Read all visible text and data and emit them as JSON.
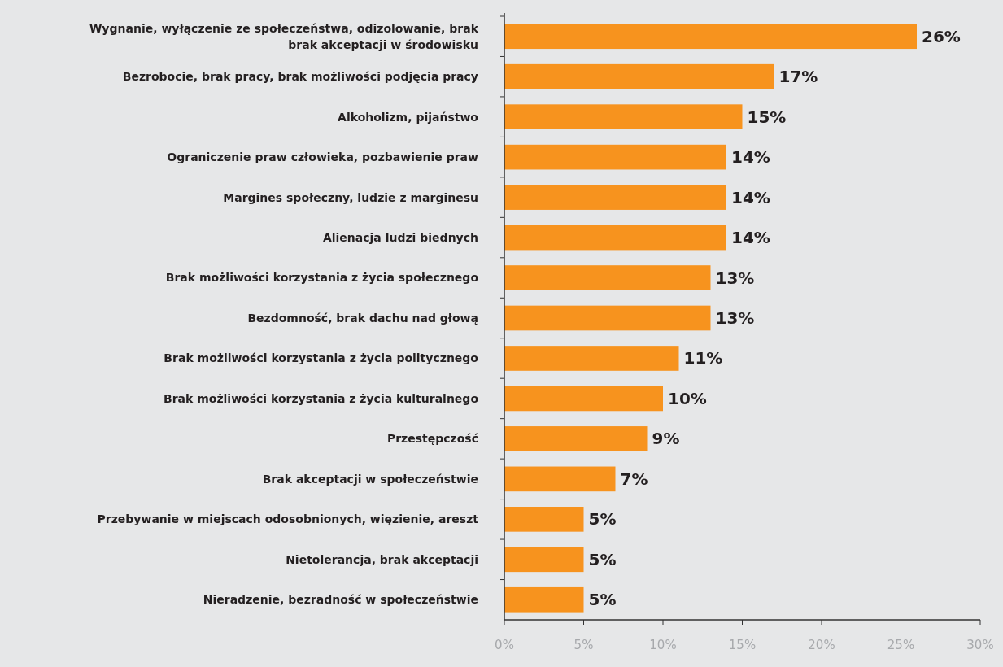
{
  "chart_data": {
    "type": "bar",
    "orientation": "horizontal",
    "categories": [
      "Wygnanie, wyłączenie ze społeczeństwa, odizolowanie, brak\nbrak akceptacji w środowisku",
      "Bezrobocie, brak pracy,  brak możliwości podjęcia pracy",
      "Alkoholizm, pijaństwo",
      "Ograniczenie praw człowieka, pozbawienie praw",
      "Margines społeczny, ludzie z marginesu",
      "Alienacja ludzi biednych",
      "Brak możliwości korzystania z życia społecznego",
      "Bezdomność, brak dachu nad głową",
      "Brak możliwości korzystania z życia politycznego",
      "Brak możliwości korzystania z życia kulturalnego",
      "Przestępczość",
      "Brak akceptacji w społeczeństwie",
      "Przebywanie w miejscach odosobnionych, więzienie, areszt",
      "Nietolerancja, brak akceptacji",
      "Nieradzenie, bezradność w społeczeństwie"
    ],
    "values": [
      26,
      17,
      15,
      14,
      14,
      14,
      13,
      13,
      11,
      10,
      9,
      7,
      5,
      5,
      5
    ],
    "value_labels": [
      "26%",
      "17%",
      "15%",
      "14%",
      "14%",
      "14%",
      "13%",
      "13%",
      "11%",
      "10%",
      "9%",
      "7%",
      "5%",
      "5%",
      "5%"
    ],
    "color": "#f7931e",
    "xlim": [
      0,
      30
    ],
    "xticks": [
      {
        "value": 0,
        "label": "0%"
      },
      {
        "value": 5,
        "label": "5%"
      },
      {
        "value": 10,
        "label": "10%"
      },
      {
        "value": 15,
        "label": "15%"
      },
      {
        "value": 20,
        "label": "20%"
      },
      {
        "value": 25,
        "label": "25%"
      },
      {
        "value": 30,
        "label": "30%"
      }
    ],
    "grid": false
  }
}
